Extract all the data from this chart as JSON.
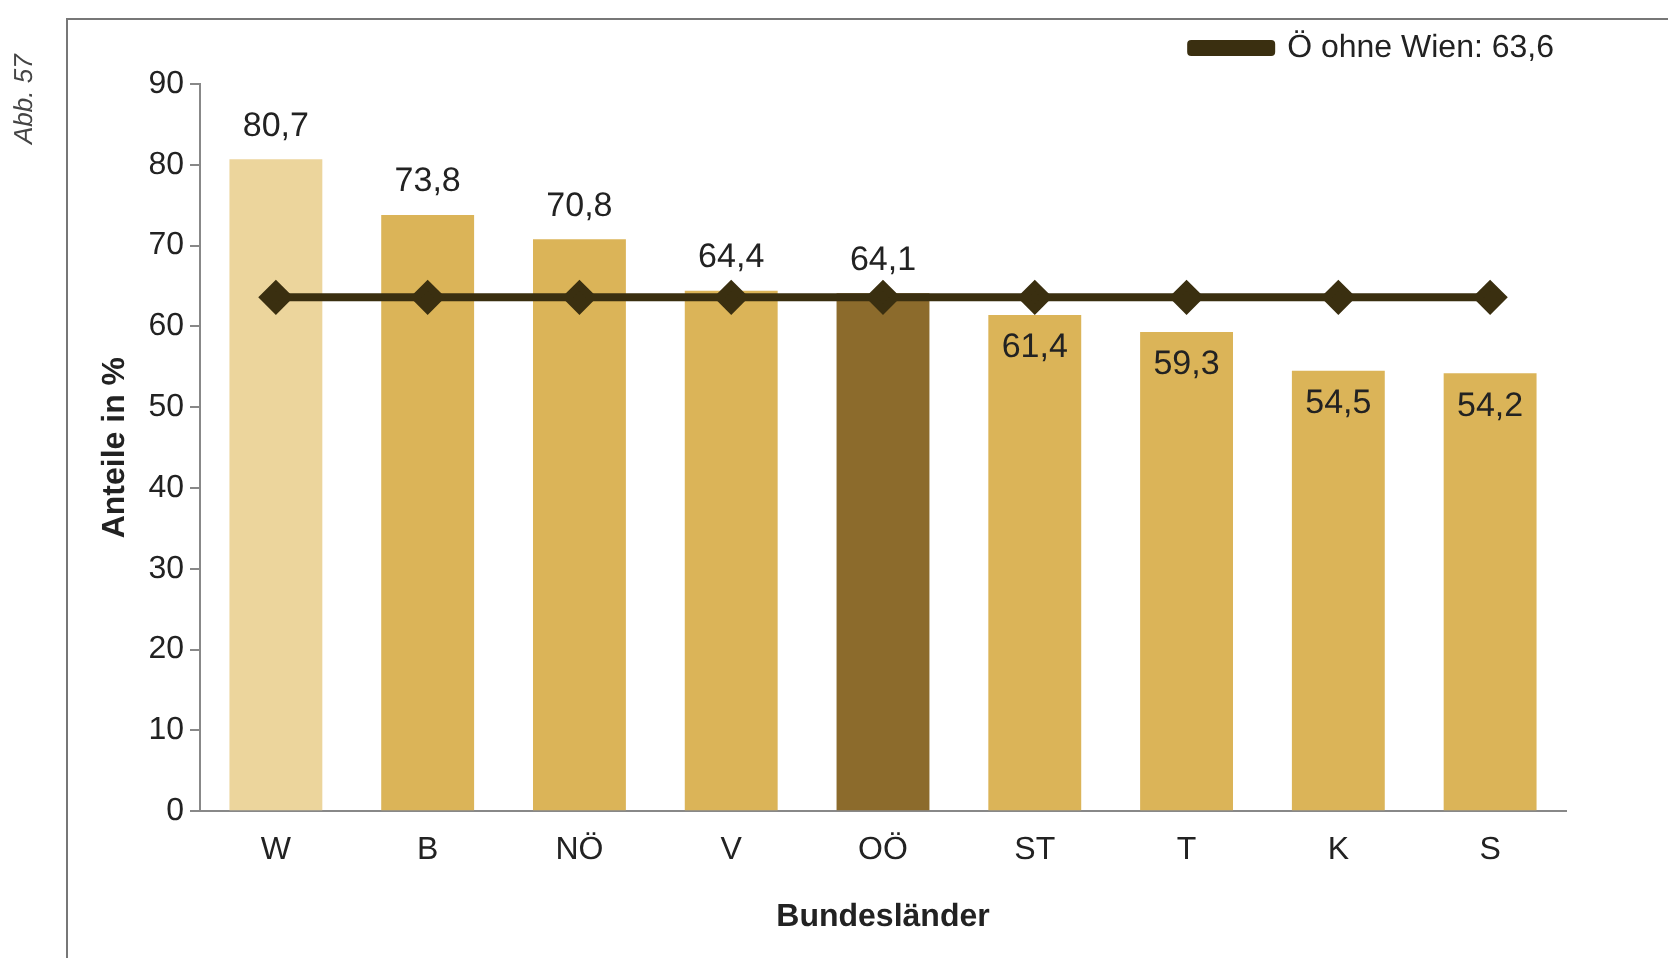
{
  "chart_data": {
    "type": "bar",
    "xlabel": "Bundesländer",
    "ylabel": "Anteile in %",
    "categories": [
      "W",
      "B",
      "NÖ",
      "V",
      "OÖ",
      "ST",
      "T",
      "K",
      "S"
    ],
    "series": [
      {
        "colors": [
          "#ecd59c",
          "#dbb458",
          "#dbb458",
          "#dbb458",
          "#8c6b2c",
          "#dbb458",
          "#dbb458",
          "#dbb458",
          "#dbb458"
        ],
        "values": [
          80.7,
          73.8,
          70.8,
          64.4,
          64.1,
          61.4,
          59.3,
          54.5,
          54.2
        ],
        "value_labels": [
          "80,7",
          "73,8",
          "70,8",
          "64,4",
          "64,1",
          "61,4",
          "59,3",
          "54,5",
          "54,2"
        ]
      },
      {
        "type": "line",
        "name": "Ö ohne Wien: 63,6",
        "color": "#3a2f10",
        "values": [
          63.6,
          63.6,
          63.6,
          63.6,
          63.6,
          63.6,
          63.6,
          63.6,
          63.6
        ]
      }
    ],
    "ylim": [
      0,
      90
    ],
    "yticks": [
      0,
      10,
      20,
      30,
      40,
      50,
      60,
      70,
      80,
      90
    ],
    "grid": false,
    "legend": "top right",
    "marker": "diamond",
    "line_style": "solid",
    "annotations": [
      "Abb. 57"
    ]
  }
}
